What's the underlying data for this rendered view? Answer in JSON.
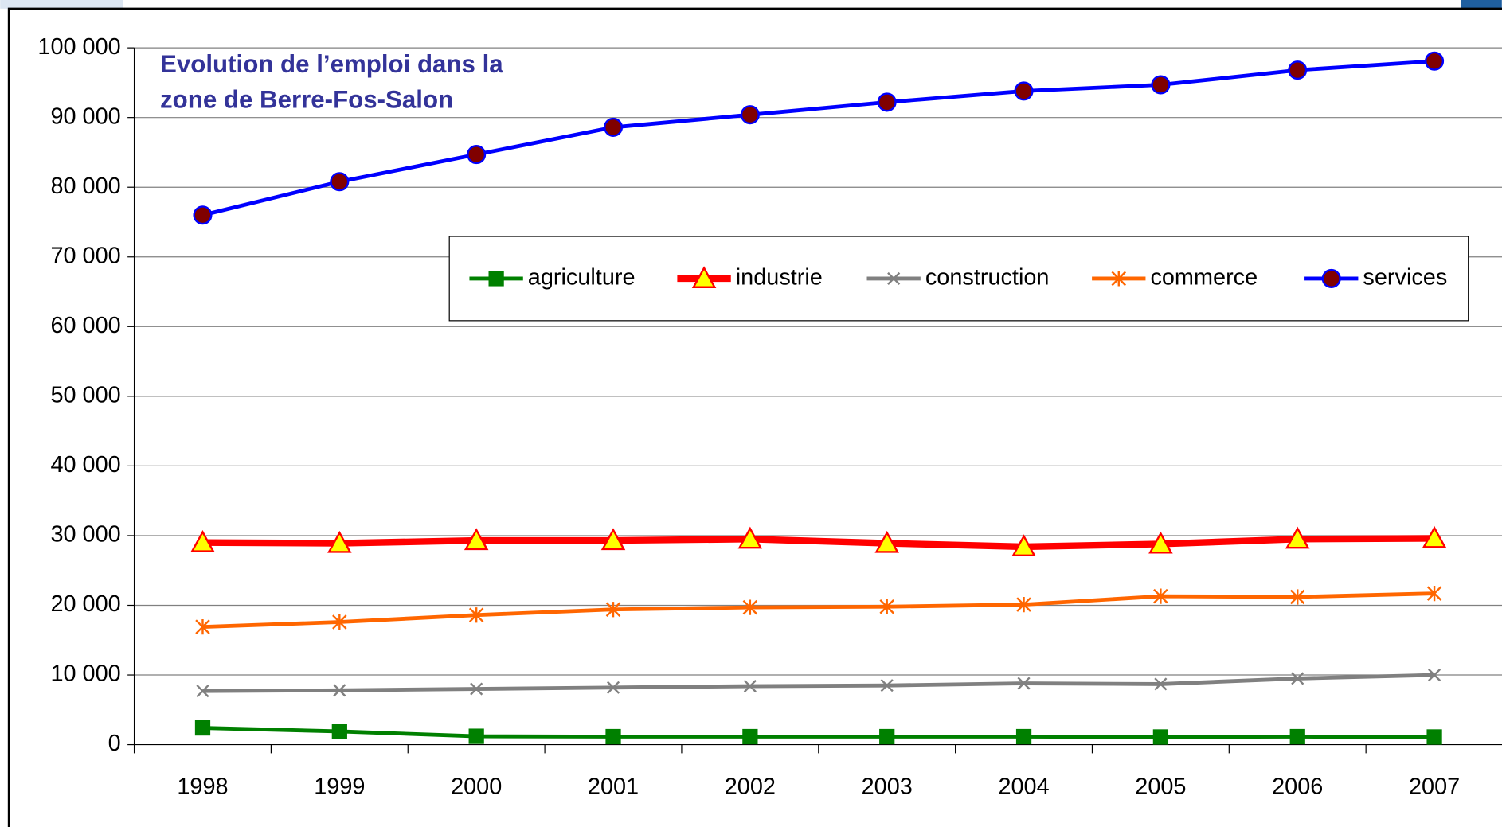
{
  "chart_data": {
    "type": "line",
    "title": [
      "Evolution de l’emploi dans la",
      "zone de Berre-Fos-Salon"
    ],
    "categories": [
      "1998",
      "1999",
      "2000",
      "2001",
      "2002",
      "2003",
      "2004",
      "2005",
      "2006",
      "2007"
    ],
    "series": [
      {
        "name": "agriculture",
        "color": "#008000",
        "marker": "square",
        "values": [
          2400,
          1900,
          1200,
          1150,
          1150,
          1150,
          1150,
          1100,
          1150,
          1100
        ]
      },
      {
        "name": "industrie",
        "color": "#ff0000",
        "marker": "triangle",
        "marker_color": "#ffff00",
        "values": [
          29000,
          28900,
          29300,
          29300,
          29500,
          28900,
          28400,
          28800,
          29500,
          29600
        ]
      },
      {
        "name": "construction",
        "color": "#808080",
        "marker": "x",
        "values": [
          7700,
          7800,
          8000,
          8200,
          8400,
          8500,
          8800,
          8700,
          9500,
          10000
        ]
      },
      {
        "name": "commerce",
        "color": "#ff6600",
        "marker": "asterisk",
        "values": [
          16900,
          17600,
          18600,
          19400,
          19700,
          19800,
          20100,
          21300,
          21200,
          21700
        ]
      },
      {
        "name": "services",
        "color": "#0000ff",
        "marker": "circle",
        "marker_color": "#800000",
        "values": [
          76000,
          80800,
          84700,
          88600,
          90400,
          92200,
          93800,
          94700,
          96800,
          98100
        ]
      }
    ],
    "ylim": [
      0,
      100000
    ],
    "yticks": [
      0,
      {
        "value": 10000,
        "label": "10 000"
      },
      {
        "value": 20000,
        "label": "20 000"
      },
      {
        "value": 30000,
        "label": "30 000"
      },
      {
        "value": 40000,
        "label": "40 000"
      },
      {
        "value": 50000,
        "label": "50 000"
      },
      {
        "value": 60000,
        "label": "60 000"
      },
      {
        "value": 70000,
        "label": "70 000"
      },
      {
        "value": 80000,
        "label": "80 000"
      },
      {
        "value": 90000,
        "label": "90 000"
      },
      {
        "value": 100000,
        "label": "100 000"
      }
    ],
    "grid": true,
    "legend": "inside"
  }
}
